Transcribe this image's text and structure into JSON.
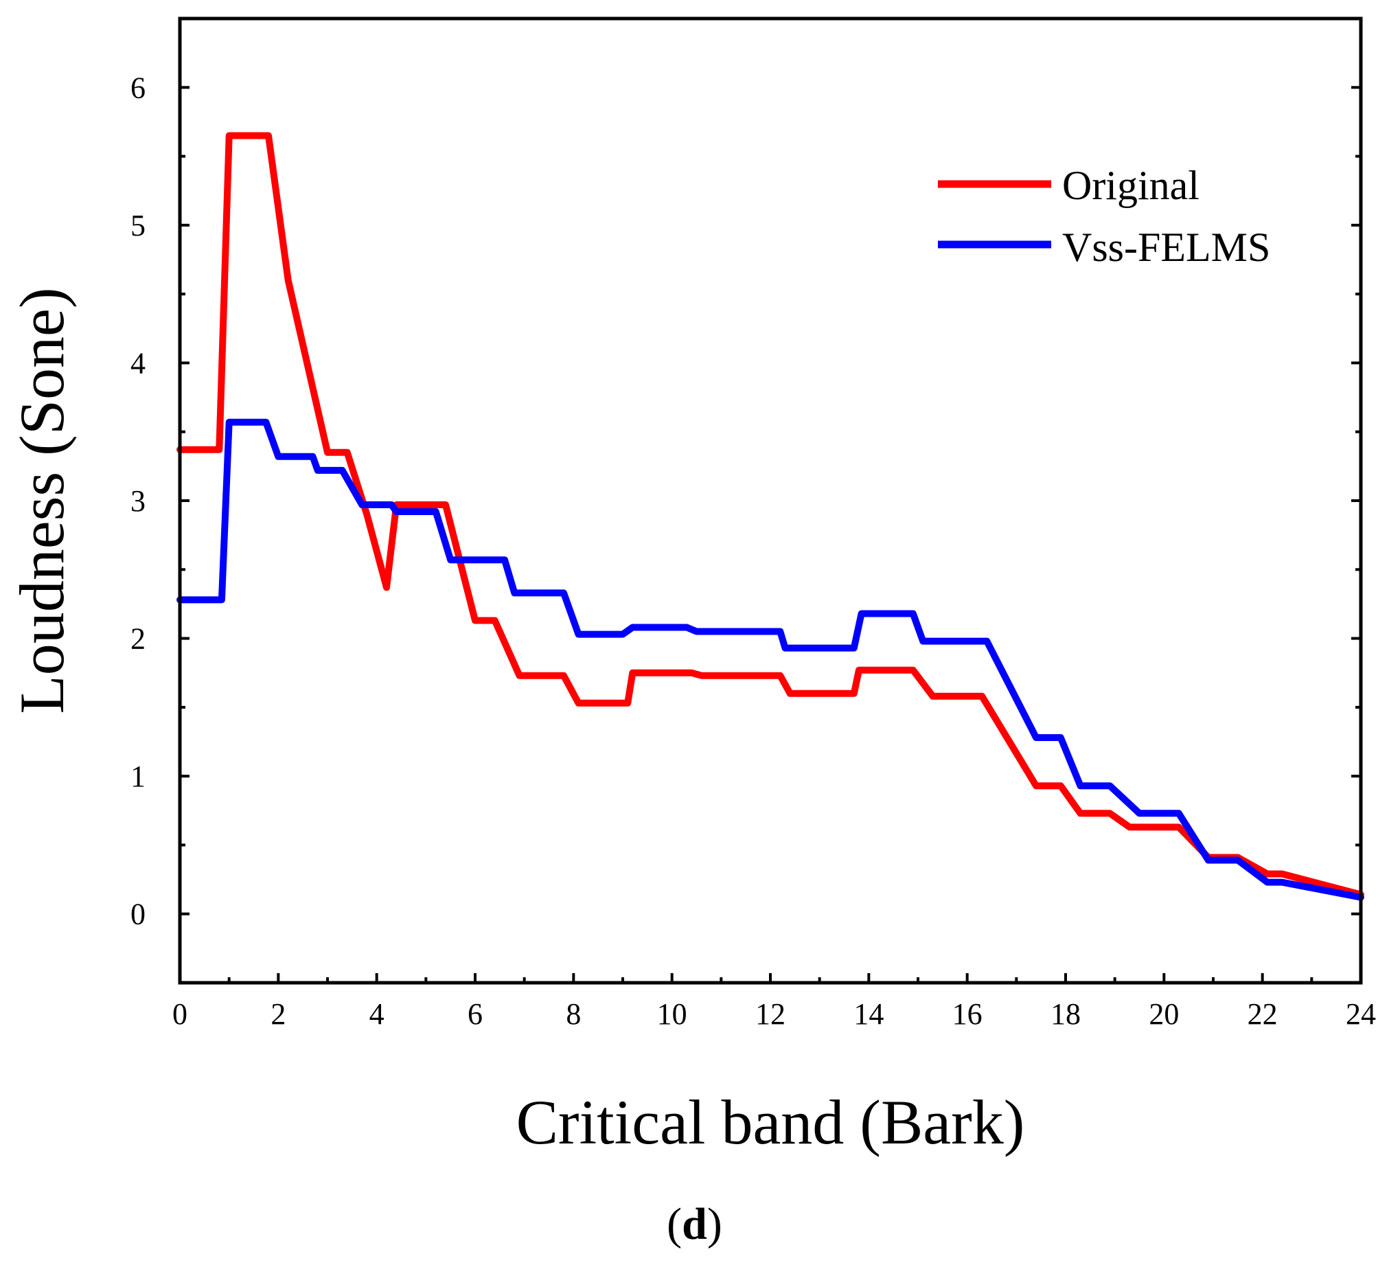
{
  "chart_data": {
    "type": "line",
    "title": "",
    "xlabel": "Critical band (Bark)",
    "ylabel": "Loudness (Sone)",
    "xlim": [
      0,
      24
    ],
    "ylim": [
      -0.5,
      6.5
    ],
    "xticks": [
      0,
      2,
      4,
      6,
      8,
      10,
      12,
      14,
      16,
      18,
      20,
      22,
      24
    ],
    "yticks": [
      0,
      1,
      2,
      3,
      4,
      5,
      6
    ],
    "xtick_labels": [
      "0",
      "2",
      "4",
      "6",
      "8",
      "10",
      "12",
      "14",
      "16",
      "18",
      "20",
      "22",
      "24"
    ],
    "ytick_labels": [
      "0",
      "1",
      "2",
      "3",
      "4",
      "5",
      "6"
    ],
    "grid": false,
    "legend_position": "top-right",
    "series": [
      {
        "name": "Original",
        "color": "#ff0000",
        "x": [
          0,
          0.8,
          1.0,
          1.8,
          2.2,
          3.0,
          3.4,
          3.8,
          4.2,
          4.4,
          5.4,
          6.0,
          6.4,
          6.9,
          7.8,
          8.1,
          9.1,
          9.2,
          10.4,
          10.6,
          12.2,
          12.4,
          13.7,
          13.8,
          14.9,
          15.3,
          16.3,
          17.4,
          17.9,
          18.3,
          18.9,
          19.3,
          20.3,
          20.9,
          21.5,
          22.1,
          22.4,
          24.0
        ],
        "values": [
          3.37,
          3.37,
          5.65,
          5.65,
          4.6,
          3.35,
          3.35,
          2.9,
          2.37,
          2.97,
          2.97,
          2.13,
          2.13,
          1.73,
          1.73,
          1.53,
          1.53,
          1.75,
          1.75,
          1.73,
          1.73,
          1.6,
          1.6,
          1.77,
          1.77,
          1.58,
          1.58,
          0.93,
          0.93,
          0.73,
          0.73,
          0.63,
          0.63,
          0.41,
          0.41,
          0.29,
          0.29,
          0.14
        ]
      },
      {
        "name": "Vss-FELMS",
        "color": "#0000ff",
        "x": [
          0,
          0.85,
          1.0,
          1.75,
          2.0,
          2.7,
          2.8,
          3.3,
          3.7,
          4.3,
          4.4,
          5.2,
          5.5,
          6.6,
          6.8,
          7.8,
          8.1,
          9.0,
          9.2,
          10.3,
          10.5,
          12.2,
          12.3,
          13.7,
          13.85,
          14.9,
          15.1,
          16.4,
          17.4,
          17.9,
          18.3,
          18.9,
          19.5,
          20.3,
          20.9,
          21.5,
          22.1,
          22.4,
          24.0
        ],
        "values": [
          2.28,
          2.28,
          3.57,
          3.57,
          3.32,
          3.32,
          3.22,
          3.22,
          2.97,
          2.97,
          2.92,
          2.92,
          2.57,
          2.57,
          2.33,
          2.33,
          2.03,
          2.03,
          2.08,
          2.08,
          2.05,
          2.05,
          1.93,
          1.93,
          2.18,
          2.18,
          1.98,
          1.98,
          1.28,
          1.28,
          0.93,
          0.93,
          0.73,
          0.73,
          0.39,
          0.39,
          0.23,
          0.23,
          0.12
        ]
      }
    ]
  },
  "panel_label": {
    "open": "(",
    "letter": "d",
    "close": ")"
  }
}
